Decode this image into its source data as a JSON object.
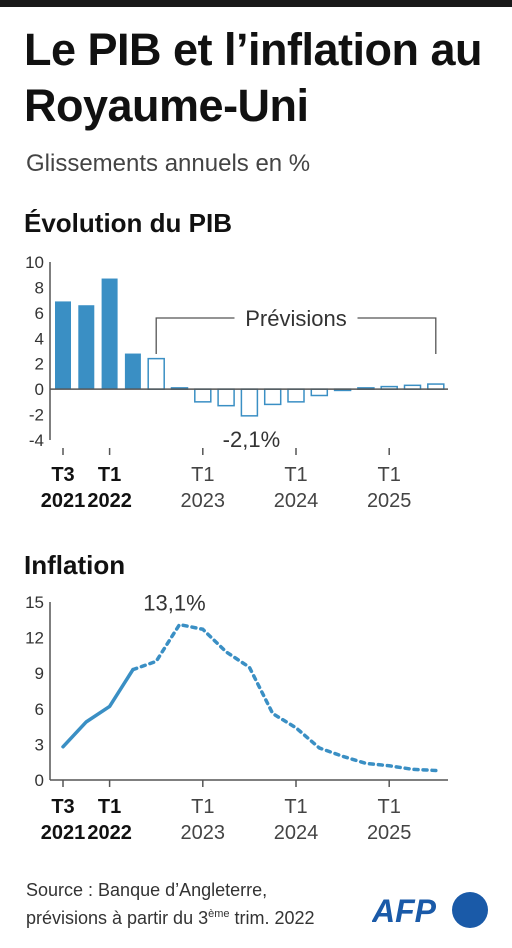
{
  "header": {
    "title": "Le PIB et l’inflation au Royaume-Uni",
    "subtitle": "Glissements annuels en %"
  },
  "colors": {
    "accent": "#3a8fc4",
    "axis": "#555555",
    "text": "#333333"
  },
  "chart_data": [
    {
      "type": "bar",
      "title": "Évolution du PIB",
      "ylim": [
        -4,
        10
      ],
      "yticks": [
        "10",
        "8",
        "6",
        "4",
        "2",
        "0",
        "-2",
        "-4"
      ],
      "values": [
        6.9,
        6.6,
        8.7,
        2.8,
        2.4,
        0.1,
        -1.0,
        -1.3,
        -2.1,
        -1.2,
        -1.0,
        -0.5,
        -0.1,
        0.1,
        0.2,
        0.3,
        0.4
      ],
      "forecast_start_index": 4,
      "forecast_label": "Prévisions",
      "annotation": "-2,1%",
      "annotation_index": 8,
      "xlabels": [
        {
          "index": 0,
          "line1": "T3",
          "line2": "2021",
          "bold": true
        },
        {
          "index": 2,
          "line1": "T1",
          "line2": "2022",
          "bold": true
        },
        {
          "index": 6,
          "line1": "T1",
          "line2": "2023",
          "bold": false
        },
        {
          "index": 10,
          "line1": "T1",
          "line2": "2024",
          "bold": false
        },
        {
          "index": 14,
          "line1": "T1",
          "line2": "2025",
          "bold": false
        }
      ]
    },
    {
      "type": "line",
      "title": "Inflation",
      "ylim": [
        0,
        15
      ],
      "yticks": [
        "15",
        "12",
        "9",
        "6",
        "3",
        "0"
      ],
      "values": [
        2.8,
        4.9,
        6.2,
        9.3,
        10.0,
        13.1,
        12.7,
        10.8,
        9.5,
        5.6,
        4.4,
        2.7,
        2.0,
        1.4,
        1.2,
        0.9,
        0.8
      ],
      "forecast_start_index": 3,
      "annotation": "13,1%",
      "annotation_index": 5,
      "xlabels": [
        {
          "index": 0,
          "line1": "T3",
          "line2": "2021",
          "bold": true
        },
        {
          "index": 2,
          "line1": "T1",
          "line2": "2022",
          "bold": true
        },
        {
          "index": 6,
          "line1": "T1",
          "line2": "2023",
          "bold": false
        },
        {
          "index": 10,
          "line1": "T1",
          "line2": "2024",
          "bold": false
        },
        {
          "index": 14,
          "line1": "T1",
          "line2": "2025",
          "bold": false
        }
      ]
    }
  ],
  "footer": {
    "source_line1": "Source : Banque d’Angleterre,",
    "source_line2a": "prévisions à partir du 3",
    "source_sup": "ème",
    "source_line2b": " trim. 2022",
    "logo_text": "AFP"
  }
}
